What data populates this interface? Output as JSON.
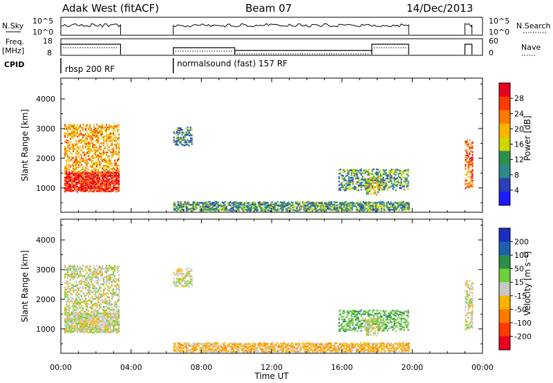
{
  "header": {
    "station": "Adak West (fitACF)",
    "beam": "Beam 07",
    "date": "14/Dec/2013"
  },
  "panels": {
    "nsky_label": "N.Sky",
    "nsearch_label": "N.Search",
    "nsky_ticks": [
      "10^5",
      "10^0"
    ],
    "nsearch_ticks": [
      "10^5",
      "10^0"
    ],
    "freq_label_top": "Freq.",
    "freq_label_bottom": "[MHz]",
    "freq_ticks": [
      "18",
      "8"
    ],
    "nave_label": "Nave",
    "nave_ticks": [
      "60",
      "0"
    ],
    "cpid_label": "CPID",
    "cpid_segments": [
      "rbsp 200 RF",
      "normalsound (fast) 157 RF"
    ]
  },
  "colorbars": {
    "power": {
      "label": "Power [dB]",
      "ticks": [
        "28",
        "24",
        "20",
        "16",
        "12",
        "8",
        "4"
      ],
      "colors": [
        "#e8001c",
        "#ff3a00",
        "#ff7a00",
        "#ffb300",
        "#cfd600",
        "#2e8f4a",
        "#2a8a8a",
        "#2a3fb8",
        "#1a1aff"
      ]
    },
    "velocity": {
      "label": "Velocity [m s⁻¹]",
      "ticks": [
        "200",
        "100",
        "50",
        "15",
        "-15",
        "-50",
        "-100",
        "-200"
      ],
      "colors": [
        "#1b2fc2",
        "#1f5fb0",
        "#2e8f4a",
        "#6fd13a",
        "#c8c8c8",
        "#ffb300",
        "#ff7a00",
        "#ff3a00",
        "#e8001c"
      ]
    }
  },
  "chart_data": {
    "type": "heatmap",
    "xlabel": "Time UT",
    "x_ticks": [
      "00:00",
      "04:00",
      "08:00",
      "12:00",
      "16:00",
      "20:00",
      "00:00"
    ],
    "ylabel": "Slant Range [km]",
    "y_ticks": [
      "4000",
      "3000",
      "2000",
      "1000"
    ],
    "xlim_hours": [
      0,
      24
    ],
    "ylim_km": [
      180,
      4700
    ],
    "operating_periods_hours": [
      [
        0.0,
        3.4
      ],
      [
        6.4,
        19.8
      ],
      [
        23.0,
        23.4
      ]
    ],
    "cpid_change_hours": [
      6.4
    ],
    "frequency_steps": [
      {
        "start": 0.0,
        "end": 3.4,
        "level": "high"
      },
      {
        "start": 6.4,
        "end": 9.9,
        "level": "low"
      },
      {
        "start": 9.9,
        "end": 17.7,
        "level": "lower"
      },
      {
        "start": 17.7,
        "end": 19.8,
        "level": "high"
      }
    ],
    "scatter_regions": [
      {
        "name": "early near-range",
        "t": [
          0.2,
          3.3
        ],
        "r": [
          850,
          1500
        ],
        "power": 28,
        "velocity": 0
      },
      {
        "name": "early far-range",
        "t": [
          0.2,
          3.3
        ],
        "r": [
          1500,
          3100
        ],
        "power": 20,
        "velocity": 0
      },
      {
        "name": "ground scatter",
        "t": [
          6.4,
          19.8
        ],
        "r": [
          200,
          500
        ],
        "power": 10,
        "velocity": -30
      },
      {
        "name": "08UT patch",
        "t": [
          6.4,
          7.5
        ],
        "r": [
          2400,
          3000
        ],
        "power": 8,
        "velocity": 0
      },
      {
        "name": "17-18UT band",
        "t": [
          15.8,
          19.8
        ],
        "r": [
          900,
          1600
        ],
        "power": 10,
        "velocity": 40
      },
      {
        "name": "17-18UT core",
        "t": [
          17.3,
          18.3
        ],
        "r": [
          750,
          1300
        ],
        "power": 16,
        "velocity": 0
      },
      {
        "name": "late",
        "t": [
          23.0,
          23.4
        ],
        "r": [
          900,
          2600
        ],
        "power": 24,
        "velocity": 0
      }
    ]
  }
}
